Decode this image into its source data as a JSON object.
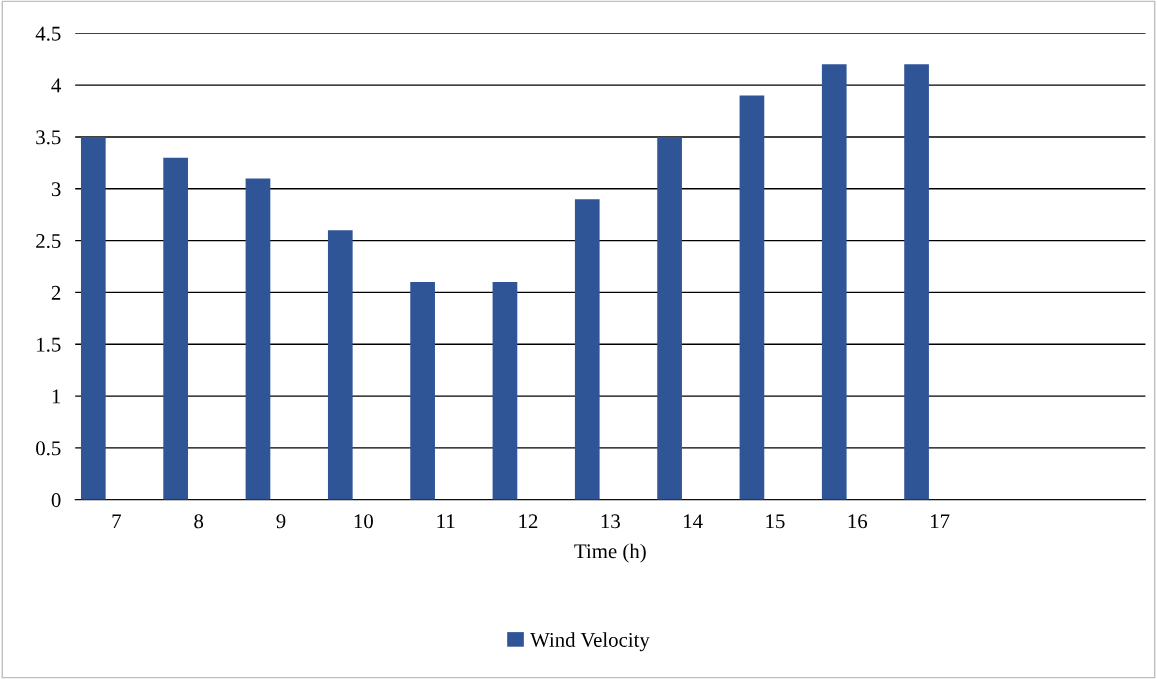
{
  "chart_data": {
    "type": "bar",
    "xlabel": "Time (h)",
    "categories": [
      "7",
      "8",
      "9",
      "10",
      "11",
      "12",
      "13",
      "14",
      "15",
      "16",
      "17",
      null,
      null
    ],
    "series": [
      {
        "name": "Wind Velocity",
        "color": "#2f5597",
        "values": [
          3.5,
          3.3,
          3.1,
          2.6,
          2.1,
          2.1,
          2.9,
          3.5,
          3.9,
          4.2,
          4.2,
          null,
          null
        ]
      }
    ],
    "ylim": [
      0,
      4.5
    ],
    "yticks": [
      0,
      0.5,
      1,
      1.5,
      2,
      2.5,
      3,
      3.5,
      4,
      4.5
    ],
    "grid": "y",
    "legend": "bottom"
  }
}
